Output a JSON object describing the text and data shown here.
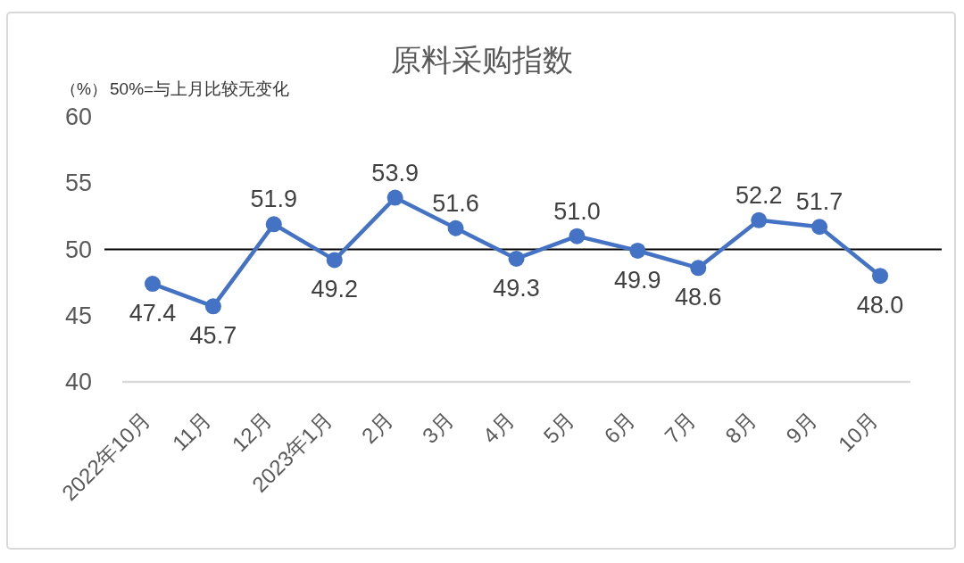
{
  "chart_data": {
    "type": "line",
    "title": "原料采购指数",
    "ylabel": "（%）",
    "annotations": [
      "50%=与上月比较无变化"
    ],
    "categories": [
      "2022年10月",
      "11月",
      "12月",
      "2023年1月",
      "2月",
      "3月",
      "4月",
      "5月",
      "6月",
      "7月",
      "8月",
      "9月",
      "10月"
    ],
    "series": [
      {
        "color": "#4472c4",
        "values": [
          47.4,
          45.7,
          51.9,
          49.2,
          53.9,
          51.6,
          49.3,
          51.0,
          49.9,
          48.6,
          52.2,
          51.7,
          48.0
        ],
        "value_labels": [
          "47.4",
          "45.7",
          "51.9",
          "49.2",
          "53.9",
          "51.6",
          "49.3",
          "51.0",
          "49.9",
          "48.6",
          "52.2",
          "51.7",
          "48.0"
        ]
      }
    ],
    "ylim": [
      40,
      60
    ],
    "yticks": [
      40,
      45,
      50,
      55,
      60
    ],
    "ref_lines": [
      {
        "axis": "y",
        "value": 50,
        "color": "#000000"
      }
    ],
    "marker": "circle",
    "line_style": "solid",
    "grid": false
  }
}
